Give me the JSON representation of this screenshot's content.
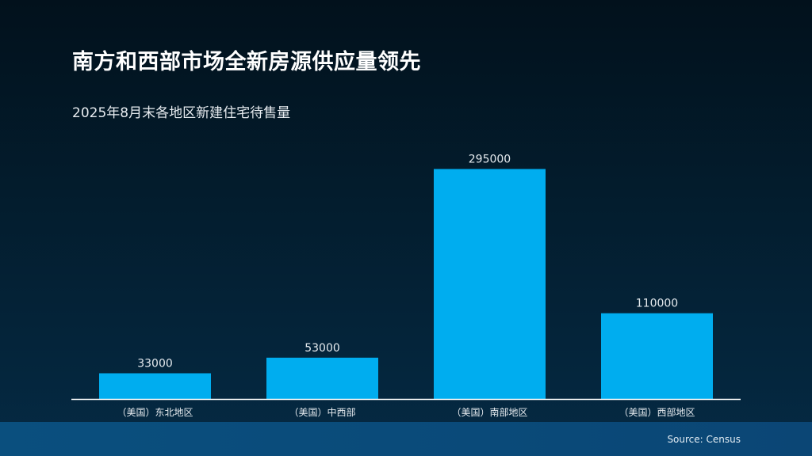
{
  "slide": {
    "title": "南方和西部市场全新房源供应量领先",
    "subtitle": "2025年8月末各地区新建住宅待售量",
    "source": "Source: Census"
  },
  "colors": {
    "bar": "#00adef",
    "axis": "#ffffff",
    "label": "#e6ebef"
  },
  "chart_data": {
    "type": "bar",
    "title": "2025年8月末各地区新建住宅待售量",
    "categories": [
      "（美国）东北地区",
      "（美国）中西部",
      "（美国）南部地区",
      "（美国）西部地区"
    ],
    "values": [
      33000,
      53000,
      295000,
      110000
    ],
    "xlabel": "",
    "ylabel": "",
    "ylim": [
      0,
      330000
    ],
    "grid": false,
    "legend": "none"
  }
}
